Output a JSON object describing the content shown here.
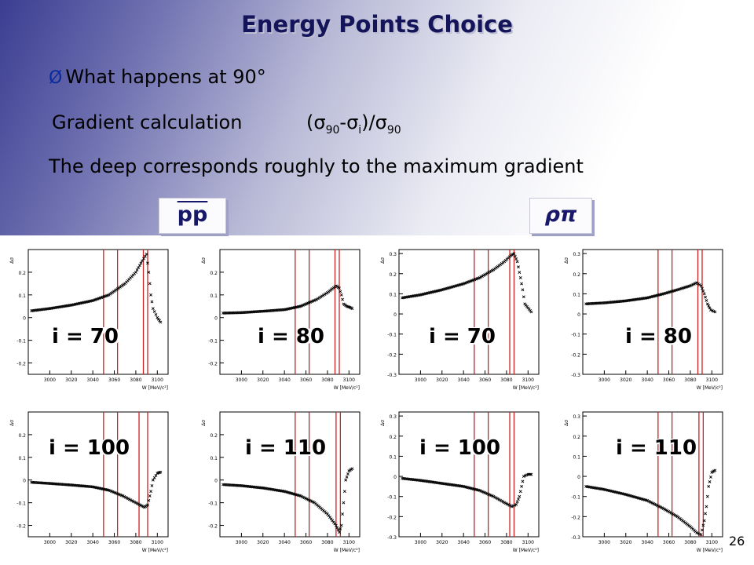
{
  "slide": {
    "title": "Energy Points Choice",
    "bullet_mark": "Ø",
    "bullet": "What happens at 90°",
    "gradient_label": "Gradient calculation",
    "formula": {
      "open": "(σ",
      "s1": "90",
      "mid": "-σ",
      "s2": "i",
      "close": ")/σ",
      "s3": "90"
    },
    "deep_text": "The deep corresponds roughly to the maximum gradient",
    "tag_pp": "pp",
    "tag_rho": "ρπ",
    "page_number": "26"
  },
  "chart_data": [
    {
      "type": "scatter",
      "label": "i = 70",
      "group": "pp",
      "ylabel": "Δσ",
      "xlabel": "W [MeV/c²]",
      "xlim": [
        2980,
        3110
      ],
      "ylim": [
        -0.25,
        0.3
      ],
      "yticks": [
        "0.2",
        "0.1",
        "0",
        "-0.1",
        "-0.2"
      ],
      "xticks": [
        "3000",
        "3020",
        "3040",
        "3060",
        "3080",
        "3100"
      ],
      "vlines": [
        3050,
        3063,
        3087,
        3091
      ],
      "points": [
        [
          2983,
          0.03
        ],
        [
          3000,
          0.04
        ],
        [
          3020,
          0.055
        ],
        [
          3040,
          0.075
        ],
        [
          3055,
          0.1
        ],
        [
          3070,
          0.15
        ],
        [
          3080,
          0.2
        ],
        [
          3086,
          0.25
        ],
        [
          3090,
          0.28
        ],
        [
          3092,
          0.2
        ],
        [
          3094,
          0.1
        ],
        [
          3096,
          0.04
        ],
        [
          3100,
          0.0
        ],
        [
          3103,
          -0.02
        ]
      ]
    },
    {
      "type": "scatter",
      "label": "i = 80",
      "group": "pp",
      "ylabel": "Δσ",
      "xlabel": "W [MeV/c²]",
      "xlim": [
        2980,
        3110
      ],
      "ylim": [
        -0.25,
        0.3
      ],
      "yticks": [
        "0.2",
        "0.1",
        "0",
        "-0.1",
        "-0.2"
      ],
      "xticks": [
        "3000",
        "3020",
        "3040",
        "3060",
        "3080",
        "3100"
      ],
      "vlines": [
        3050,
        3063,
        3087,
        3091
      ],
      "points": [
        [
          2983,
          0.02
        ],
        [
          3000,
          0.022
        ],
        [
          3020,
          0.028
        ],
        [
          3040,
          0.035
        ],
        [
          3055,
          0.05
        ],
        [
          3070,
          0.08
        ],
        [
          3080,
          0.11
        ],
        [
          3088,
          0.14
        ],
        [
          3091,
          0.13
        ],
        [
          3093,
          0.1
        ],
        [
          3095,
          0.06
        ],
        [
          3098,
          0.05
        ],
        [
          3101,
          0.045
        ],
        [
          3103,
          0.04
        ]
      ]
    },
    {
      "type": "scatter",
      "label": "i = 70",
      "group": "rho-pi",
      "ylabel": "Δσ",
      "xlabel": "W [MeV/c²]",
      "xlim": [
        2980,
        3110
      ],
      "ylim": [
        -0.3,
        0.32
      ],
      "yticks": [
        "0.3",
        "0.2",
        "0.1",
        "0",
        "-0.1",
        "-0.2",
        "-0.3"
      ],
      "xticks": [
        "3000",
        "3020",
        "3040",
        "3060",
        "3080",
        "3100"
      ],
      "vlines": [
        3050,
        3063,
        3083,
        3087
      ],
      "points": [
        [
          2983,
          0.08
        ],
        [
          3000,
          0.095
        ],
        [
          3020,
          0.12
        ],
        [
          3040,
          0.15
        ],
        [
          3055,
          0.18
        ],
        [
          3068,
          0.22
        ],
        [
          3078,
          0.26
        ],
        [
          3084,
          0.29
        ],
        [
          3087,
          0.3
        ],
        [
          3090,
          0.26
        ],
        [
          3093,
          0.18
        ],
        [
          3095,
          0.12
        ],
        [
          3097,
          0.05
        ],
        [
          3100,
          0.03
        ],
        [
          3103,
          0.01
        ]
      ]
    },
    {
      "type": "scatter",
      "label": "i = 80",
      "group": "rho-pi",
      "ylabel": "Δσ",
      "xlabel": "W [MeV/c²]",
      "xlim": [
        2980,
        3110
      ],
      "ylim": [
        -0.3,
        0.32
      ],
      "yticks": [
        "0.3",
        "0.2",
        "0.1",
        "0",
        "-0.1",
        "-0.2",
        "-0.3"
      ],
      "xticks": [
        "3000",
        "3020",
        "3040",
        "3060",
        "3080",
        "3100"
      ],
      "vlines": [
        3050,
        3063,
        3087,
        3091
      ],
      "points": [
        [
          2983,
          0.05
        ],
        [
          3000,
          0.055
        ],
        [
          3020,
          0.065
        ],
        [
          3040,
          0.08
        ],
        [
          3055,
          0.1
        ],
        [
          3068,
          0.12
        ],
        [
          3080,
          0.14
        ],
        [
          3086,
          0.155
        ],
        [
          3090,
          0.14
        ],
        [
          3093,
          0.1
        ],
        [
          3096,
          0.05
        ],
        [
          3099,
          0.02
        ],
        [
          3103,
          0.01
        ]
      ]
    },
    {
      "type": "scatter",
      "label": "i = 100",
      "group": "pp",
      "ylabel": "Δσ",
      "xlabel": "W [MeV/c²]",
      "xlim": [
        2980,
        3110
      ],
      "ylim": [
        -0.25,
        0.3
      ],
      "yticks": [
        "0.2",
        "0.1",
        "0",
        "-0.1",
        "-0.2"
      ],
      "xticks": [
        "3000",
        "3020",
        "3040",
        "3060",
        "3080",
        "3100"
      ],
      "vlines": [
        3050,
        3063,
        3083,
        3091
      ],
      "points": [
        [
          2983,
          -0.01
        ],
        [
          3000,
          -0.015
        ],
        [
          3020,
          -0.022
        ],
        [
          3040,
          -0.03
        ],
        [
          3055,
          -0.045
        ],
        [
          3068,
          -0.07
        ],
        [
          3080,
          -0.1
        ],
        [
          3088,
          -0.12
        ],
        [
          3091,
          -0.11
        ],
        [
          3094,
          -0.05
        ],
        [
          3096,
          0.0
        ],
        [
          3100,
          0.03
        ],
        [
          3103,
          0.035
        ]
      ]
    },
    {
      "type": "scatter",
      "label": "i = 110",
      "group": "pp",
      "ylabel": "Δσ",
      "xlabel": "W [MeV/c²]",
      "xlim": [
        2980,
        3110
      ],
      "ylim": [
        -0.25,
        0.3
      ],
      "yticks": [
        "0.2",
        "0.1",
        "0",
        "-0.1",
        "-0.2"
      ],
      "xticks": [
        "3000",
        "3020",
        "3040",
        "3060",
        "3080",
        "3100"
      ],
      "vlines": [
        3050,
        3063,
        3088,
        3092
      ],
      "points": [
        [
          2983,
          -0.02
        ],
        [
          3000,
          -0.025
        ],
        [
          3020,
          -0.035
        ],
        [
          3040,
          -0.05
        ],
        [
          3055,
          -0.07
        ],
        [
          3068,
          -0.1
        ],
        [
          3080,
          -0.15
        ],
        [
          3088,
          -0.2
        ],
        [
          3091,
          -0.23
        ],
        [
          3093,
          -0.2
        ],
        [
          3095,
          -0.1
        ],
        [
          3097,
          0.0
        ],
        [
          3100,
          0.04
        ],
        [
          3103,
          0.05
        ]
      ]
    },
    {
      "type": "scatter",
      "label": "i = 100",
      "group": "rho-pi",
      "ylabel": "Δσ",
      "xlabel": "W [MeV/c²]",
      "xlim": [
        2980,
        3110
      ],
      "ylim": [
        -0.3,
        0.32
      ],
      "yticks": [
        "0.3",
        "0.2",
        "0.1",
        "0",
        "-0.1",
        "-0.2",
        "-0.3"
      ],
      "xticks": [
        "3000",
        "3020",
        "3040",
        "3060",
        "3080",
        "3100"
      ],
      "vlines": [
        3050,
        3063,
        3083,
        3087
      ],
      "points": [
        [
          2983,
          -0.01
        ],
        [
          3000,
          -0.02
        ],
        [
          3020,
          -0.035
        ],
        [
          3040,
          -0.05
        ],
        [
          3055,
          -0.07
        ],
        [
          3068,
          -0.1
        ],
        [
          3078,
          -0.13
        ],
        [
          3085,
          -0.15
        ],
        [
          3089,
          -0.14
        ],
        [
          3092,
          -0.1
        ],
        [
          3094,
          -0.05
        ],
        [
          3096,
          0.0
        ],
        [
          3100,
          0.01
        ],
        [
          3103,
          0.01
        ]
      ]
    },
    {
      "type": "scatter",
      "label": "i = 110",
      "group": "rho-pi",
      "ylabel": "Δσ",
      "xlabel": "W [MeV/c²]",
      "xlim": [
        2980,
        3110
      ],
      "ylim": [
        -0.3,
        0.32
      ],
      "yticks": [
        "0.3",
        "0.2",
        "0.1",
        "0",
        "-0.1",
        "-0.2",
        "-0.3"
      ],
      "xticks": [
        "3000",
        "3020",
        "3040",
        "3060",
        "3080",
        "3100"
      ],
      "vlines": [
        3050,
        3063,
        3088,
        3092
      ],
      "points": [
        [
          2983,
          -0.05
        ],
        [
          3000,
          -0.065
        ],
        [
          3020,
          -0.09
        ],
        [
          3040,
          -0.12
        ],
        [
          3055,
          -0.16
        ],
        [
          3068,
          -0.2
        ],
        [
          3080,
          -0.25
        ],
        [
          3086,
          -0.28
        ],
        [
          3090,
          -0.29
        ],
        [
          3093,
          -0.22
        ],
        [
          3095,
          -0.15
        ],
        [
          3097,
          -0.05
        ],
        [
          3100,
          0.02
        ],
        [
          3103,
          0.03
        ]
      ]
    }
  ],
  "colors": {
    "vline": "#cc2222",
    "marker": "#000000",
    "title": "#14145a"
  }
}
